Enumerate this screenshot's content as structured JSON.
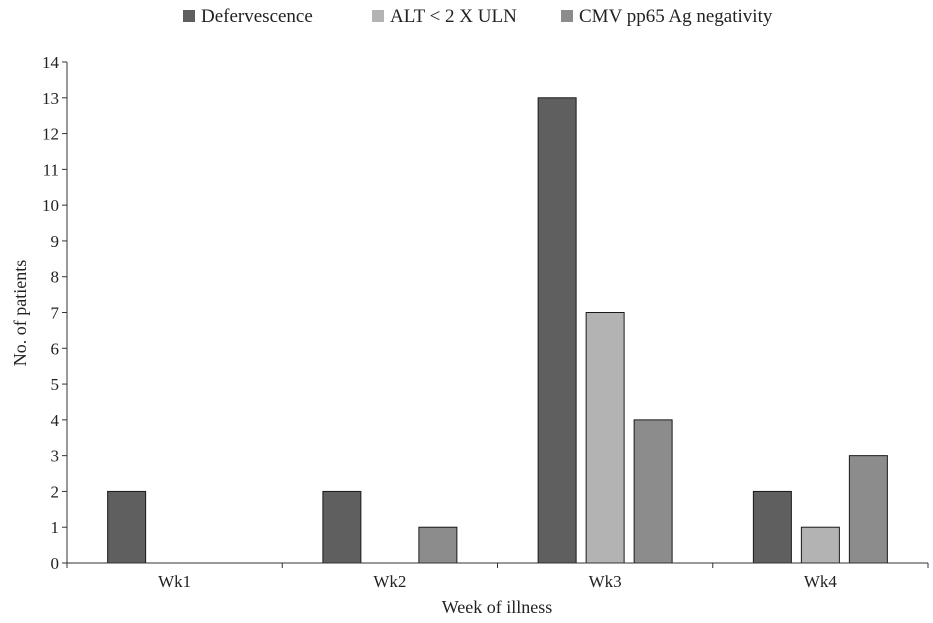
{
  "chart_data": {
    "type": "bar",
    "categories": [
      "Wk1",
      "Wk2",
      "Wk3",
      "Wk4"
    ],
    "series": [
      {
        "name": "Defervescence",
        "values": [
          2,
          2,
          13,
          2
        ],
        "color": "#5f5f5f"
      },
      {
        "name": "ALT < 2 X ULN",
        "values": [
          0,
          0,
          7,
          1
        ],
        "color": "#b3b3b3"
      },
      {
        "name": "CMV pp65 Ag negativity",
        "values": [
          0,
          1,
          4,
          3
        ],
        "color": "#8c8c8c"
      }
    ],
    "xlabel": "Week of illness",
    "ylabel": "No. of patients",
    "ylim": [
      0,
      14
    ],
    "yticks": [
      0,
      1,
      2,
      3,
      4,
      5,
      6,
      7,
      8,
      9,
      10,
      11,
      12,
      13,
      14
    ],
    "grid": false,
    "legend_position": "top"
  }
}
